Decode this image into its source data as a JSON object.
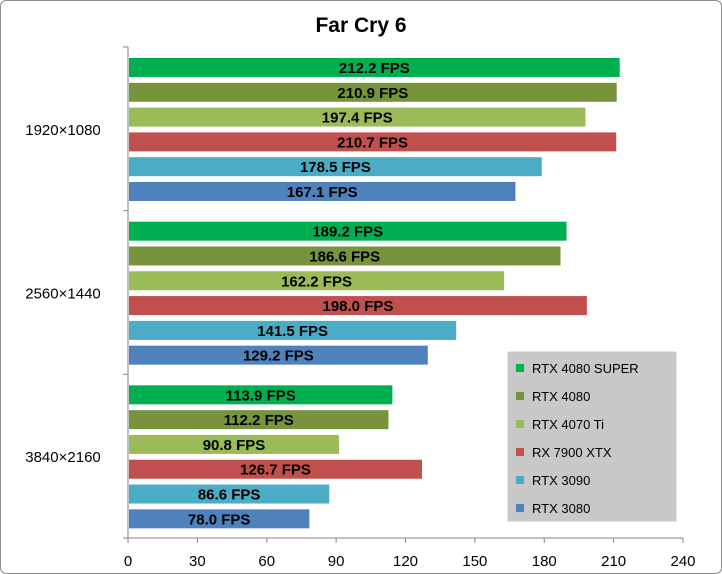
{
  "chart_data": {
    "type": "bar",
    "orientation": "horizontal",
    "title": "Far Cry 6",
    "categories": [
      "1920×1080",
      "2560×1440",
      "3840×2160"
    ],
    "value_suffix": " FPS",
    "xlim": [
      0,
      240
    ],
    "xticks": [
      0,
      30,
      60,
      90,
      120,
      150,
      180,
      210,
      240
    ],
    "grid": false,
    "legend_position": "bottom-right",
    "series": [
      {
        "name": "RTX 4080 SUPER",
        "color": "#00b050",
        "values": [
          212.2,
          189.2,
          113.9
        ]
      },
      {
        "name": "RTX 4080",
        "color": "#77933c",
        "values": [
          210.9,
          186.6,
          112.2
        ]
      },
      {
        "name": "RTX 4070 Ti",
        "color": "#9bbb59",
        "values": [
          197.4,
          162.2,
          90.8
        ]
      },
      {
        "name": "RX 7900 XTX",
        "color": "#c0504d",
        "values": [
          210.7,
          198.0,
          126.7
        ]
      },
      {
        "name": "RTX 3090",
        "color": "#4bacc6",
        "values": [
          178.5,
          141.5,
          86.6
        ]
      },
      {
        "name": "RTX 3080",
        "color": "#4f81bd",
        "values": [
          167.1,
          129.2,
          78.0
        ]
      }
    ]
  }
}
